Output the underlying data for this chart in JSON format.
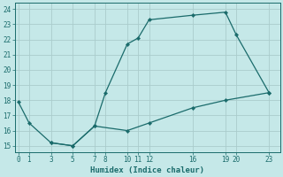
{
  "xlabel": "Humidex (Indice chaleur)",
  "bg_color": "#c5e8e8",
  "grid_color": "#aacccc",
  "line_color": "#1a6b6b",
  "line1_x": [
    0,
    1,
    3,
    5,
    7,
    8,
    10,
    11,
    12,
    16,
    19,
    20,
    23
  ],
  "line1_y": [
    17.9,
    16.5,
    15.2,
    15.0,
    16.3,
    18.5,
    21.7,
    22.1,
    23.3,
    23.6,
    23.8,
    22.3,
    18.5
  ],
  "line2_x": [
    3,
    5,
    7,
    10,
    12,
    16,
    19,
    23
  ],
  "line2_y": [
    15.2,
    15.0,
    16.3,
    16.0,
    16.5,
    17.5,
    18.0,
    18.5
  ],
  "xlim": [
    -0.3,
    24.0
  ],
  "ylim": [
    14.6,
    24.4
  ],
  "xticks": [
    0,
    1,
    3,
    5,
    7,
    8,
    10,
    11,
    12,
    16,
    19,
    20,
    23
  ],
  "yticks": [
    15,
    16,
    17,
    18,
    19,
    20,
    21,
    22,
    23,
    24
  ],
  "marker_size": 2.2,
  "line_width": 0.9,
  "tick_fontsize": 5.5,
  "xlabel_fontsize": 6.5
}
